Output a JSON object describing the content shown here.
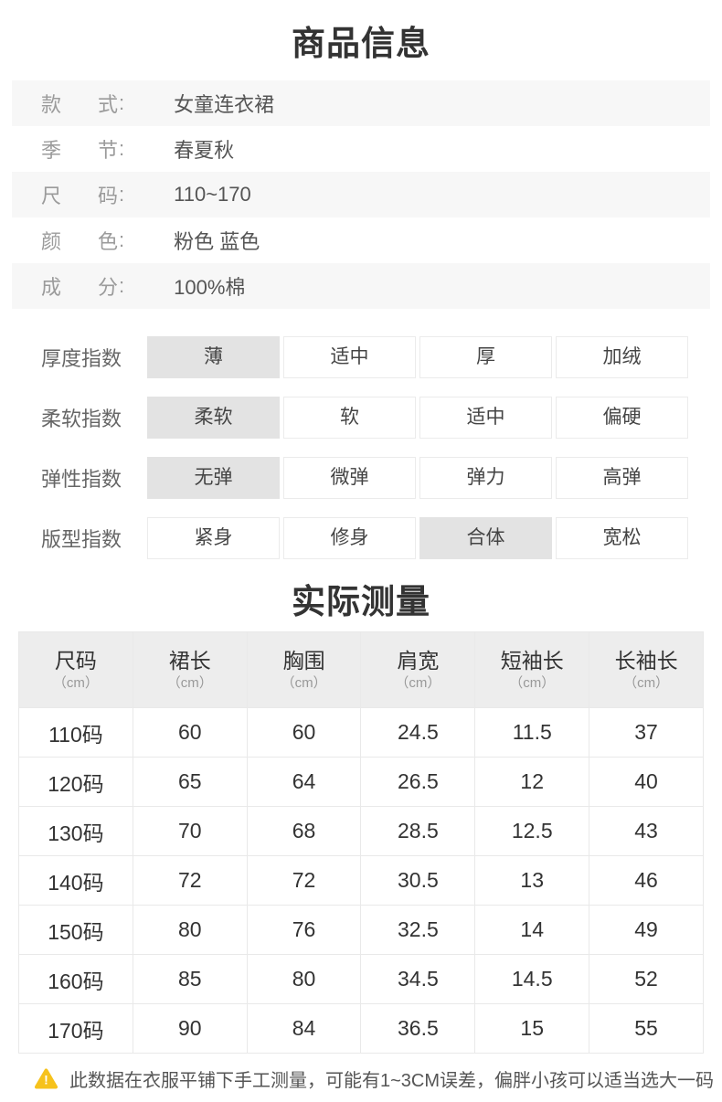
{
  "sections": {
    "product_info_title": "商品信息",
    "measurement_title": "实际测量"
  },
  "product_info": [
    {
      "key": "style",
      "label": "款式",
      "value": "女童连衣裙"
    },
    {
      "key": "season",
      "label": "季节",
      "value": "春夏秋"
    },
    {
      "key": "size",
      "label": "尺码",
      "value": "110~170"
    },
    {
      "key": "color",
      "label": "颜色",
      "value": "粉色 蓝色"
    },
    {
      "key": "material",
      "label": "成分",
      "value": "100%棉"
    }
  ],
  "indices": [
    {
      "key": "thickness",
      "label": "厚度指数",
      "options": [
        "薄",
        "适中",
        "厚",
        "加绒"
      ],
      "selected": 0
    },
    {
      "key": "softness",
      "label": "柔软指数",
      "options": [
        "柔软",
        "软",
        "适中",
        "偏硬"
      ],
      "selected": 0
    },
    {
      "key": "elasticity",
      "label": "弹性指数",
      "options": [
        "无弹",
        "微弹",
        "弹力",
        "高弹"
      ],
      "selected": 0
    },
    {
      "key": "fit",
      "label": "版型指数",
      "options": [
        "紧身",
        "修身",
        "合体",
        "宽松"
      ],
      "selected": 2
    }
  ],
  "measurement_table": {
    "headers": [
      {
        "name": "尺码",
        "unit": "（cm）"
      },
      {
        "name": "裙长",
        "unit": "（cm）"
      },
      {
        "name": "胸围",
        "unit": "（cm）"
      },
      {
        "name": "肩宽",
        "unit": "（cm）"
      },
      {
        "name": "短袖长",
        "unit": "（cm）"
      },
      {
        "name": "长袖长",
        "unit": "（cm）"
      }
    ],
    "rows": [
      [
        "110码",
        "60",
        "60",
        "24.5",
        "11.5",
        "37"
      ],
      [
        "120码",
        "65",
        "64",
        "26.5",
        "12",
        "40"
      ],
      [
        "130码",
        "70",
        "68",
        "28.5",
        "12.5",
        "43"
      ],
      [
        "140码",
        "72",
        "72",
        "30.5",
        "13",
        "46"
      ],
      [
        "150码",
        "80",
        "76",
        "32.5",
        "14",
        "49"
      ],
      [
        "160码",
        "85",
        "80",
        "34.5",
        "14.5",
        "52"
      ],
      [
        "170码",
        "90",
        "84",
        "36.5",
        "15",
        "55"
      ]
    ]
  },
  "footer": {
    "icon": "warning-triangle-icon",
    "text": "此数据在衣服平铺下手工测量，可能有1~3CM误差，偏胖小孩可以适当选大一码"
  },
  "colors": {
    "stripe_row_bg": "#f7f7f7",
    "highlight_cell_bg": "#e3e3e3",
    "table_header_bg": "#ededed",
    "border": "#e9e9e9",
    "warning_icon": "#f6c21c",
    "label_gray": "#9b9b9b",
    "text_dark": "#333333"
  }
}
